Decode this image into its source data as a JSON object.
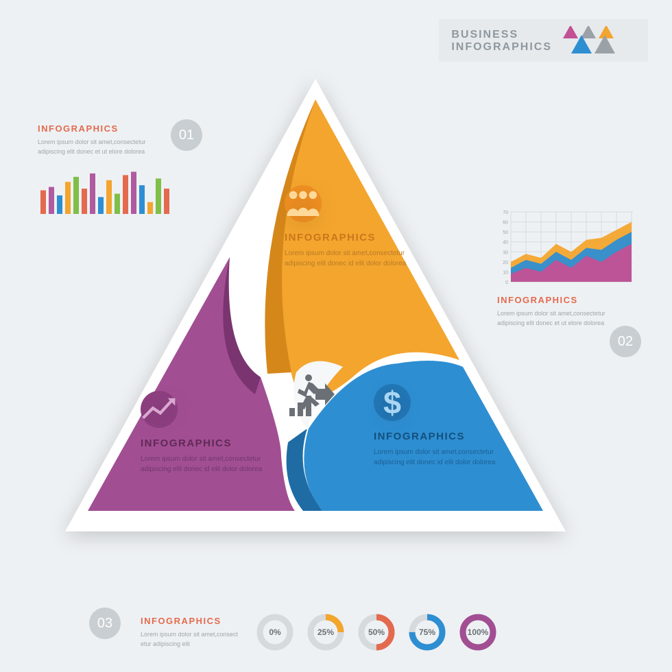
{
  "header": {
    "line1": "BUSINESS",
    "line2": "INFOGRAPHICS",
    "tri_colors": [
      "#c35194",
      "#9aa1a7",
      "#f3a52e",
      "#2e8ed2",
      "#9aa1a7"
    ]
  },
  "colors": {
    "bg": "#eef1f3",
    "grey": "#c8ced2",
    "text_grey": "#8f989e",
    "orange": "#f3a52e",
    "orange_dark": "#d6871a",
    "blue": "#2e8ed2",
    "blue_dark": "#1f6ca5",
    "purple": "#a24e93",
    "purple_dark": "#7a3470",
    "accent_title": "#e36a4e"
  },
  "segments": {
    "top": {
      "title": "INFOGRAPHICS",
      "title_color": "#c9781b",
      "body_color": "#b87a25",
      "body": "Lorem ipsum dolor sit amet,consectetur adipiscing elit donec id elit dolor dolorea",
      "icon": "people",
      "icon_bg": "#f19022",
      "icon_fg": "#ffd99a"
    },
    "right": {
      "title": "INFOGRAPHICS",
      "title_color": "#134f7c",
      "body_color": "#1b5f93",
      "body": "Lorem ipsum dolor sit amet,consectetur adipiscing elit donec id elit dolor dolorea",
      "icon": "dollar",
      "icon_bg": "#2277b6",
      "icon_fg": "#a9d6f3"
    },
    "left": {
      "title": "INFOGRAPHICS",
      "title_color": "#5f2a55",
      "body_color": "#6e386a",
      "body": "Lorem ipsum dolor sit amet,consectetur adipiscing elit donec id elit dolor dolorea",
      "icon": "trend",
      "icon_bg": "#8d3f80",
      "icon_fg": "#d9a9d0"
    }
  },
  "side_blocks": {
    "s1": {
      "num": "01",
      "title": "INFOGRAPHICS",
      "title_color": "#e36a4e",
      "body_color": "#9ea5aa",
      "body": "Lorem ipsum dolor sit amet,consectetur adipiscing elit donec et ut elore dolorea",
      "bars": {
        "values": [
          28,
          32,
          22,
          38,
          44,
          30,
          48,
          20,
          40,
          24,
          46,
          50,
          34,
          14,
          42,
          30
        ],
        "colors": [
          "#e36a4e",
          "#b05aa0",
          "#2e8ed2",
          "#f3a52e",
          "#7fbf49",
          "#e36a4e",
          "#b05aa0",
          "#2e8ed2",
          "#f3a52e",
          "#7fbf49",
          "#e36a4e",
          "#b05aa0",
          "#2e8ed2",
          "#f3a52e",
          "#7fbf49",
          "#e36a4e"
        ],
        "max": 52
      }
    },
    "s2": {
      "num": "02",
      "title": "INFOGRAPHICS",
      "title_color": "#e36a4e",
      "body_color": "#9ea5aa",
      "body": "Lorem ipsum dolor sit amet,consectetur adipiscing elit donec et ut elore dolorea",
      "area": {
        "ylim": [
          0,
          70
        ],
        "ytick_step": 10,
        "grid_color": "#d7dbde",
        "series": [
          {
            "color": "#f3a52e",
            "points": [
              20,
              28,
              24,
              38,
              30,
              42,
              44,
              52,
              60
            ]
          },
          {
            "color": "#2e8ed2",
            "points": [
              14,
              22,
              18,
              30,
              22,
              34,
              32,
              42,
              50
            ]
          },
          {
            "color": "#c35194",
            "points": [
              8,
              14,
              10,
              22,
              14,
              26,
              20,
              30,
              38
            ]
          }
        ]
      }
    },
    "s3": {
      "num": "03",
      "title": "INFOGRAPHICS",
      "title_color": "#e36a4e",
      "body_color": "#9ea5aa",
      "body": "Lorem ipsum dolor sit amet,consect etur adipiscing elit"
    }
  },
  "donuts": {
    "track": "#d7dadc",
    "items": [
      {
        "pct": 0,
        "label": "0%",
        "color": "#c35194"
      },
      {
        "pct": 25,
        "label": "25%",
        "color": "#f3a52e"
      },
      {
        "pct": 50,
        "label": "50%",
        "color": "#e36a4e"
      },
      {
        "pct": 75,
        "label": "75%",
        "color": "#2e8ed2"
      },
      {
        "pct": 100,
        "label": "100%",
        "color": "#a24e93"
      }
    ]
  }
}
